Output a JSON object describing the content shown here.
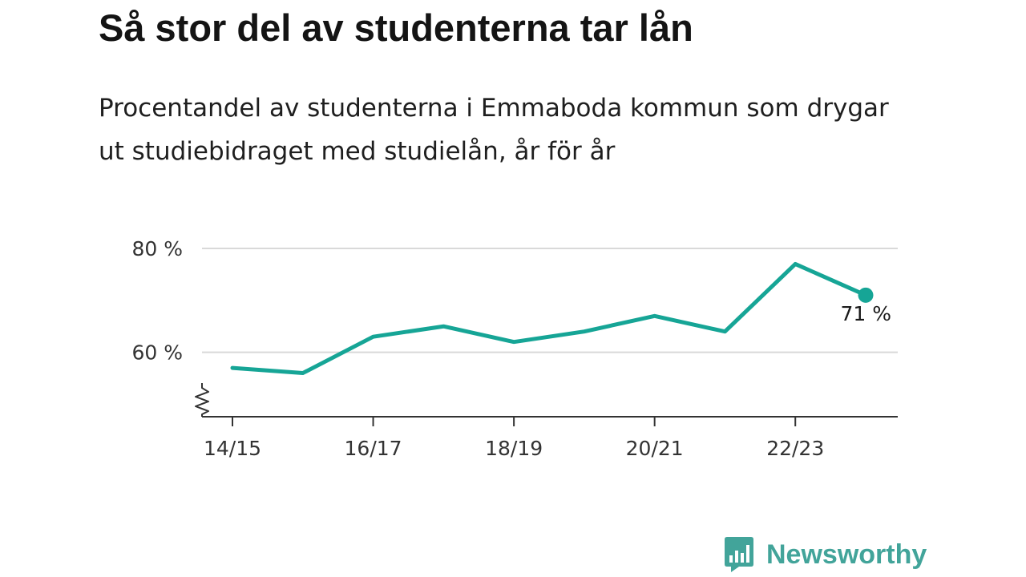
{
  "title": "Så stor del av studenterna tar lån",
  "subtitle": "Procentandel av studenterna i Emmaboda kommun som drygar ut studiebidraget med studielån, år för år",
  "brand": {
    "name": "Newsworthy"
  },
  "colors": {
    "line": "#16a596",
    "grid": "#d9d9d9",
    "axis": "#333333",
    "brand": "#42a49a"
  },
  "chart_data": {
    "type": "line",
    "x": [
      "14/15",
      "15/16",
      "16/17",
      "17/18",
      "18/19",
      "19/20",
      "20/21",
      "21/22",
      "22/23",
      "23/24"
    ],
    "x_tick_labels": [
      "14/15",
      "16/17",
      "18/19",
      "20/21",
      "22/23"
    ],
    "series": [
      {
        "values": [
          57,
          56,
          63,
          65,
          62,
          64,
          67,
          64,
          77,
          71
        ]
      }
    ],
    "y_ticks": [
      60,
      80
    ],
    "y_tick_labels": [
      "60 %",
      "80 %"
    ],
    "ylim": [
      47.6,
      80
    ],
    "y_axis_break": true,
    "grid": true,
    "last_value_label": "71 %",
    "title": "Så stor del av studenterna tar lån",
    "xlabel": "",
    "ylabel": ""
  }
}
